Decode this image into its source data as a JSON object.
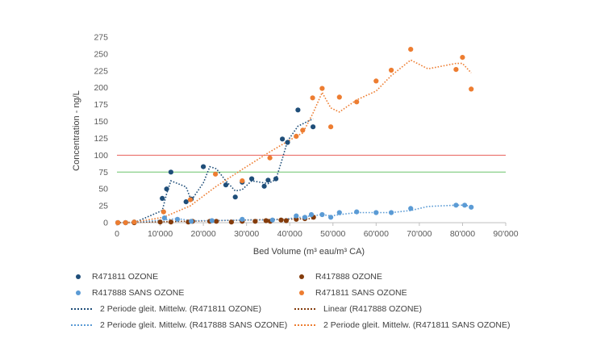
{
  "chart_data": {
    "type": "scatter",
    "xlabel": "Bed Volume (m³ eau/m³ CA)",
    "ylabel": "Concentration - ng/L",
    "xlim": [
      0,
      90000
    ],
    "ylim": [
      0,
      275
    ],
    "x_ticks": [
      "0",
      "10'000",
      "20'000",
      "30'000",
      "40'000",
      "50'000",
      "60'000",
      "70'000",
      "80'000",
      "90'000"
    ],
    "y_ticks": [
      "0",
      "25",
      "50",
      "75",
      "100",
      "125",
      "150",
      "175",
      "200",
      "225",
      "250",
      "275"
    ],
    "grid": false,
    "legend_position": "bottom",
    "reference_lines": [
      {
        "y": 100,
        "color": "#e8605a"
      },
      {
        "y": 75,
        "color": "#6cc36c"
      }
    ],
    "series": [
      {
        "name": "R471811 OZONE",
        "color": "#1f4e79",
        "points": [
          [
            200,
            0
          ],
          [
            2000,
            0
          ],
          [
            4000,
            1
          ],
          [
            10500,
            36
          ],
          [
            11500,
            50
          ],
          [
            12500,
            75
          ],
          [
            16000,
            31
          ],
          [
            17200,
            35
          ],
          [
            20000,
            83
          ],
          [
            25200,
            56
          ],
          [
            27400,
            38
          ],
          [
            29000,
            60
          ],
          [
            31200,
            65
          ],
          [
            34100,
            54
          ],
          [
            35000,
            63
          ],
          [
            36800,
            65
          ],
          [
            38300,
            124
          ],
          [
            39500,
            119
          ],
          [
            41900,
            167
          ],
          [
            45400,
            142
          ]
        ]
      },
      {
        "name": "R417888 OZONE",
        "color": "#843c0c",
        "points": [
          [
            200,
            0
          ],
          [
            2000,
            0
          ],
          [
            4000,
            0
          ],
          [
            10000,
            1
          ],
          [
            12500,
            1
          ],
          [
            16500,
            1
          ],
          [
            17500,
            2
          ],
          [
            21500,
            2
          ],
          [
            23000,
            2
          ],
          [
            26500,
            1
          ],
          [
            29000,
            2
          ],
          [
            32000,
            2
          ],
          [
            34500,
            3
          ],
          [
            35500,
            2
          ],
          [
            38000,
            4
          ],
          [
            39200,
            3
          ],
          [
            41500,
            5
          ],
          [
            43500,
            6
          ],
          [
            45500,
            8
          ]
        ]
      },
      {
        "name": "R417888 SANS OZONE",
        "color": "#5b9bd5",
        "points": [
          [
            200,
            0
          ],
          [
            2000,
            0
          ],
          [
            11000,
            7
          ],
          [
            14000,
            5
          ],
          [
            17200,
            2
          ],
          [
            22000,
            3
          ],
          [
            29000,
            5
          ],
          [
            36000,
            4
          ],
          [
            41500,
            10
          ],
          [
            43500,
            8
          ],
          [
            45000,
            12
          ],
          [
            47500,
            12
          ],
          [
            49500,
            8
          ],
          [
            51500,
            15
          ],
          [
            55500,
            16
          ],
          [
            60000,
            15
          ],
          [
            63500,
            15
          ],
          [
            68000,
            21
          ],
          [
            78500,
            26
          ],
          [
            80500,
            26
          ],
          [
            82000,
            23
          ]
        ]
      },
      {
        "name": "R471811 SANS OZONE",
        "color": "#ed7d31",
        "points": [
          [
            200,
            0
          ],
          [
            2000,
            0
          ],
          [
            4000,
            1
          ],
          [
            10800,
            16
          ],
          [
            17000,
            34
          ],
          [
            22800,
            72
          ],
          [
            29000,
            62
          ],
          [
            35400,
            96
          ],
          [
            41500,
            128
          ],
          [
            43000,
            137
          ],
          [
            45300,
            185
          ],
          [
            47500,
            199
          ],
          [
            49500,
            142
          ],
          [
            51500,
            186
          ],
          [
            55500,
            179
          ],
          [
            60000,
            210
          ],
          [
            63500,
            226
          ],
          [
            68000,
            257
          ],
          [
            78500,
            227
          ],
          [
            80000,
            245
          ],
          [
            82000,
            198
          ]
        ]
      }
    ],
    "trendlines": [
      {
        "name": "2 Periode gleit. Mittelw. (R471811 OZONE)",
        "color": "#1f4e79",
        "points": [
          [
            2000,
            0
          ],
          [
            4000,
            0
          ],
          [
            10500,
            18
          ],
          [
            11500,
            43
          ],
          [
            12500,
            62
          ],
          [
            16000,
            53
          ],
          [
            17200,
            33
          ],
          [
            20000,
            59
          ],
          [
            21500,
            83
          ],
          [
            23000,
            80
          ],
          [
            25200,
            62
          ],
          [
            27400,
            47
          ],
          [
            29000,
            49
          ],
          [
            31200,
            62
          ],
          [
            34100,
            59
          ],
          [
            35000,
            58
          ],
          [
            36800,
            64
          ],
          [
            38300,
            95
          ],
          [
            39500,
            121
          ],
          [
            41900,
            143
          ],
          [
            45400,
            154
          ]
        ]
      },
      {
        "name": "Linear (R417888 OZONE)",
        "color": "#843c0c",
        "points": [
          [
            0,
            0
          ],
          [
            45500,
            6
          ]
        ]
      },
      {
        "name": "2 Periode gleit. Mittelw. (R417888 SANS OZONE)",
        "color": "#5b9bd5",
        "points": [
          [
            2000,
            0
          ],
          [
            11000,
            4
          ],
          [
            14000,
            6
          ],
          [
            17200,
            3
          ],
          [
            22000,
            3
          ],
          [
            29000,
            4
          ],
          [
            36000,
            4
          ],
          [
            41500,
            7
          ],
          [
            43500,
            9
          ],
          [
            45000,
            10
          ],
          [
            47500,
            12
          ],
          [
            49500,
            10
          ],
          [
            51500,
            12
          ],
          [
            55500,
            15
          ],
          [
            60000,
            15
          ],
          [
            63500,
            15
          ],
          [
            68000,
            18
          ],
          [
            72000,
            24
          ],
          [
            78500,
            26
          ],
          [
            80500,
            26
          ],
          [
            82000,
            24
          ]
        ]
      },
      {
        "name": "2 Periode gleit. Mittelw. (R471811 SANS OZONE)",
        "color": "#ed7d31",
        "points": [
          [
            2000,
            0
          ],
          [
            4000,
            1
          ],
          [
            10800,
            8
          ],
          [
            17000,
            25
          ],
          [
            22800,
            53
          ],
          [
            29000,
            79
          ],
          [
            35400,
            105
          ],
          [
            41500,
            128
          ],
          [
            43000,
            133
          ],
          [
            45300,
            161
          ],
          [
            47500,
            193
          ],
          [
            49500,
            170
          ],
          [
            51500,
            164
          ],
          [
            55500,
            182
          ],
          [
            60000,
            195
          ],
          [
            63500,
            218
          ],
          [
            68000,
            241
          ],
          [
            72000,
            228
          ],
          [
            78500,
            236
          ],
          [
            80000,
            236
          ],
          [
            82000,
            222
          ]
        ]
      }
    ]
  }
}
